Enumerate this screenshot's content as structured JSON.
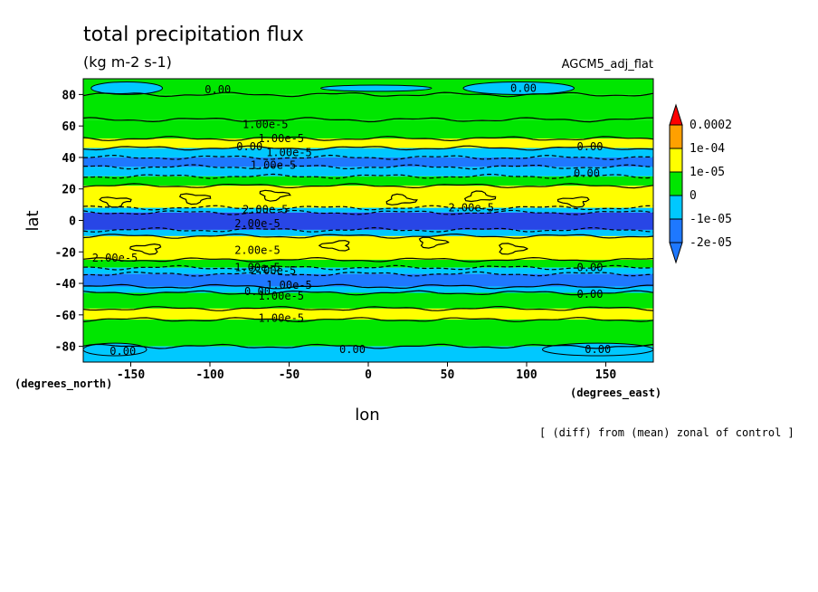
{
  "chart_data": {
    "type": "heatmap",
    "title": "total precipitation flux",
    "subtitle": "(kg m-2 s-1)",
    "run_label": "AGCM5_adj_flat",
    "xlabel": "lon",
    "ylabel": "lat",
    "x_unit_label": "(degrees_east)",
    "y_unit_label": "(degrees_north)",
    "note": "[ (diff) from (mean) zonal of control ]",
    "xlim": [
      -180,
      180
    ],
    "ylim": [
      -90,
      90
    ],
    "x_ticks": [
      -150,
      -100,
      -50,
      0,
      50,
      100,
      150
    ],
    "y_ticks": [
      80,
      60,
      40,
      20,
      0,
      -20,
      -40,
      -60,
      -80
    ],
    "x_tick_labels": [
      "-150",
      "-100",
      "-50",
      "0",
      "50",
      "100",
      "150"
    ],
    "y_tick_labels": [
      "80",
      "60",
      "40",
      "20",
      "0",
      "-20",
      "-40",
      "-60",
      "-80"
    ],
    "colorbar": {
      "colors": [
        "#1e78ff",
        "#00c8ff",
        "#00e600",
        "#ffff00",
        "#ffa000",
        "#ff0000"
      ],
      "bands": [
        {
          "color": "#1e78ff",
          "label": "-2e-05"
        },
        {
          "color": "#00c8ff",
          "label": "-1e-05"
        },
        {
          "color": "#00e600",
          "label": "0"
        },
        {
          "color": "#ffff00",
          "label": "1e-05"
        },
        {
          "color": "#ffa000",
          "label": "1e-04"
        },
        {
          "color": "#ff0000",
          "label": "0.0002"
        }
      ],
      "below_color": "#1e78ff",
      "extra_dark": "#2846e6"
    },
    "zonal_bands": [
      {
        "lat": [
          80,
          90
        ],
        "color": "#00e600"
      },
      {
        "lat": [
          64,
          80
        ],
        "color": "#00e600"
      },
      {
        "lat": [
          52,
          64
        ],
        "color": "#00e600"
      },
      {
        "lat": [
          46,
          52
        ],
        "color": "#ffff00"
      },
      {
        "lat": [
          40,
          46
        ],
        "color": "#00c8ff"
      },
      {
        "lat": [
          34,
          40
        ],
        "color": "#1e78ff"
      },
      {
        "lat": [
          28,
          34
        ],
        "color": "#00c8ff"
      },
      {
        "lat": [
          22,
          28
        ],
        "color": "#00e600"
      },
      {
        "lat": [
          8,
          22
        ],
        "color": "#ffff00"
      },
      {
        "lat": [
          5,
          8
        ],
        "color": "#00c8ff"
      },
      {
        "lat": [
          -6,
          5
        ],
        "color": "#2846e6"
      },
      {
        "lat": [
          -10,
          -6
        ],
        "color": "#00c8ff"
      },
      {
        "lat": [
          -25,
          -10
        ],
        "color": "#ffff00"
      },
      {
        "lat": [
          -30,
          -25
        ],
        "color": "#00e600"
      },
      {
        "lat": [
          -34,
          -30
        ],
        "color": "#00c8ff"
      },
      {
        "lat": [
          -42,
          -34
        ],
        "color": "#1e78ff"
      },
      {
        "lat": [
          -46,
          -42
        ],
        "color": "#00c8ff"
      },
      {
        "lat": [
          -56,
          -46
        ],
        "color": "#00e600"
      },
      {
        "lat": [
          -63,
          -56
        ],
        "color": "#ffff00"
      },
      {
        "lat": [
          -80,
          -63
        ],
        "color": "#00e600"
      },
      {
        "lat": [
          -90,
          -80
        ],
        "color": "#00c8ff"
      }
    ],
    "patches": [
      {
        "lon": [
          -175,
          -130
        ],
        "lat": [
          80,
          88
        ],
        "color": "#00c8ff"
      },
      {
        "lon": [
          -30,
          40
        ],
        "lat": [
          82,
          86
        ],
        "color": "#00c8ff"
      },
      {
        "lon": [
          60,
          130
        ],
        "lat": [
          80,
          88
        ],
        "color": "#00c8ff"
      },
      {
        "lon": [
          -180,
          -140
        ],
        "lat": [
          -86,
          -78
        ],
        "color": "#00c8ff"
      },
      {
        "lon": [
          110,
          180
        ],
        "lat": [
          -86,
          -78
        ],
        "color": "#00c8ff"
      }
    ],
    "contour_labels": [
      {
        "text": "0.00",
        "lon": -95,
        "lat": 83
      },
      {
        "text": "0.00",
        "lon": 98,
        "lat": 84
      },
      {
        "text": "1.00e-5",
        "lon": -65,
        "lat": 61
      },
      {
        "text": "1.00e-5",
        "lon": -55,
        "lat": 52
      },
      {
        "text": "0.00",
        "lon": -75,
        "lat": 47
      },
      {
        "text": "1.00e-5",
        "lon": -50,
        "lat": 43
      },
      {
        "text": "0.00",
        "lon": 140,
        "lat": 47
      },
      {
        "text": "1.00e-5",
        "lon": -60,
        "lat": 35
      },
      {
        "text": "0.00",
        "lon": 138,
        "lat": 30
      },
      {
        "text": "2.00e-5",
        "lon": 65,
        "lat": 8
      },
      {
        "text": "2.00e-5",
        "lon": -65,
        "lat": 7
      },
      {
        "text": "2.00e-5",
        "lon": -70,
        "lat": -2
      },
      {
        "text": "2.00e-5",
        "lon": -70,
        "lat": -19
      },
      {
        "text": "2.00e-5",
        "lon": -160,
        "lat": -24
      },
      {
        "text": "1.00e-5",
        "lon": -70,
        "lat": -30
      },
      {
        "text": "2.00e-5",
        "lon": -60,
        "lat": -32
      },
      {
        "text": "1.00e-5",
        "lon": -50,
        "lat": -41
      },
      {
        "text": "0.00",
        "lon": -70,
        "lat": -45
      },
      {
        "text": "1.00e-5",
        "lon": -55,
        "lat": -48
      },
      {
        "text": "0.00",
        "lon": 140,
        "lat": -47
      },
      {
        "text": "0.00",
        "lon": 140,
        "lat": -30
      },
      {
        "text": "1.00e-5",
        "lon": -55,
        "lat": -62
      },
      {
        "text": "0.00",
        "lon": -10,
        "lat": -82
      },
      {
        "text": "0.00",
        "lon": -155,
        "lat": -83
      },
      {
        "text": "0.00",
        "lon": 145,
        "lat": -82
      }
    ]
  }
}
